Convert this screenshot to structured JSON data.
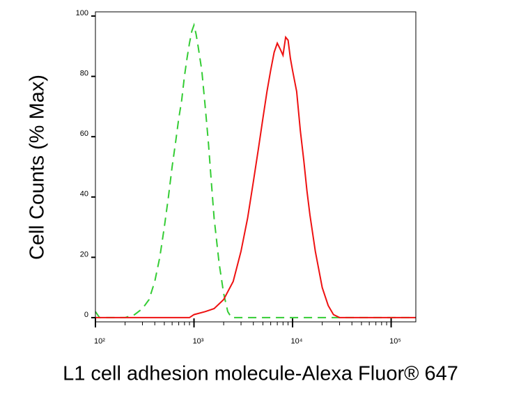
{
  "chart_data": {
    "type": "line",
    "x_label": "L1 cell adhesion molecule-Alexa Fluor® 647",
    "y_label": "Cell Counts (% Max)",
    "x_scale": "log",
    "xlim": [
      100,
      178000
    ],
    "ylim": [
      -1.4,
      101.4
    ],
    "xticks": [
      {
        "value": 100,
        "label": "10²"
      },
      {
        "value": 1000,
        "label": "10³"
      },
      {
        "value": 10000,
        "label": "10⁴"
      },
      {
        "value": 100000,
        "label": "10⁵"
      }
    ],
    "xminorticks": [
      200,
      300,
      400,
      500,
      600,
      700,
      800,
      900,
      2000,
      3000,
      4000,
      5000,
      6000,
      7000,
      8000,
      9000,
      20000,
      30000,
      40000,
      50000,
      60000,
      70000,
      80000,
      90000
    ],
    "yticks": [
      0,
      20,
      40,
      60,
      80,
      100
    ],
    "series": [
      {
        "color": "#33cc33",
        "dash": true,
        "x": [
          100,
          110,
          200,
          250,
          300,
          350,
          400,
          450,
          500,
          550,
          600,
          650,
          700,
          750,
          800,
          850,
          900,
          950,
          1000,
          1050,
          1100,
          1200,
          1300,
          1400,
          1500,
          1600,
          1800,
          2000,
          2200,
          2400,
          5000,
          20000,
          178000
        ],
        "values": [
          2,
          0,
          0,
          1,
          3,
          6,
          12,
          20,
          30,
          40,
          50,
          58,
          66,
          72,
          80,
          86,
          91,
          95,
          97,
          94,
          90,
          82,
          70,
          58,
          45,
          33,
          18,
          8,
          2,
          0,
          0,
          0,
          0
        ]
      },
      {
        "color": "#ee1111",
        "dash": false,
        "x": [
          100,
          500,
          900,
          1000,
          1300,
          1600,
          2000,
          2500,
          3000,
          3500,
          4000,
          4500,
          5000,
          5500,
          6000,
          6500,
          7000,
          7500,
          8000,
          8500,
          9000,
          9500,
          10000,
          11000,
          12000,
          13000,
          14000,
          15000,
          17000,
          20000,
          23000,
          26000,
          30000,
          100000,
          178000
        ],
        "values": [
          0,
          0,
          0,
          1,
          2,
          3,
          6,
          12,
          22,
          33,
          45,
          56,
          66,
          75,
          82,
          88,
          91,
          89,
          87,
          93,
          92,
          86,
          82,
          75,
          62,
          52,
          42,
          34,
          22,
          10,
          4,
          1,
          0,
          0,
          0
        ]
      }
    ]
  }
}
